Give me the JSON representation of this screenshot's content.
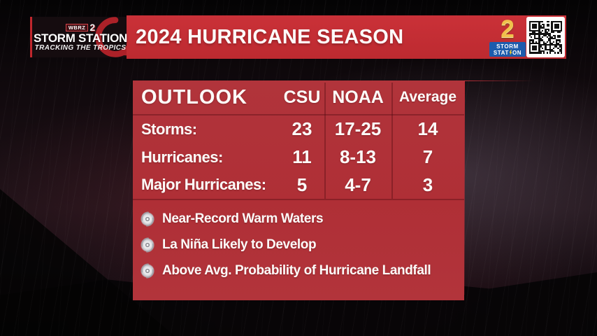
{
  "header": {
    "logo": {
      "badge": "WBRZ",
      "badge_num": "2",
      "title": "STORM STATION",
      "tagline": "TRACKING THE TROPICS"
    },
    "banner_title": "2024 HURRICANE SEASON",
    "storm2": {
      "number": "2",
      "line1": "STORM",
      "line2_pre": "STAT",
      "line2_post": "ON"
    }
  },
  "panel": {
    "table": {
      "header": {
        "outlook": "OUTLOOK",
        "csu": "CSU",
        "noaa": "NOAA",
        "average": "Average"
      },
      "rows": [
        {
          "label": "Storms:",
          "csu": "23",
          "noaa": "17-25",
          "average": "14"
        },
        {
          "label": "Hurricanes:",
          "csu": "11",
          "noaa": "8-13",
          "average": "7"
        },
        {
          "label": "Major Hurricanes:",
          "csu": "5",
          "noaa": "4-7",
          "average": "3"
        }
      ]
    },
    "bullets": [
      "Near-Record Warm Waters",
      "La Niña Likely to Develop",
      "Above Avg. Probability of Hurricane Landfall"
    ]
  },
  "icons": {
    "bullet": "hurricane-swirl-icon",
    "qr": "qr-code"
  },
  "colors": {
    "banner_red": "#c42f35",
    "panel_red": "#b1343b",
    "logo_blue": "#1d5cad",
    "gold": "#f0c14b",
    "text": "#ffffff"
  },
  "chart_data": {
    "type": "table",
    "title": "2024 HURRICANE SEASON",
    "columns": [
      "OUTLOOK",
      "CSU",
      "NOAA",
      "Average"
    ],
    "rows": [
      [
        "Storms:",
        "23",
        "17-25",
        "14"
      ],
      [
        "Hurricanes:",
        "11",
        "8-13",
        "7"
      ],
      [
        "Major Hurricanes:",
        "5",
        "4-7",
        "3"
      ]
    ],
    "notes": [
      "Near-Record Warm Waters",
      "La Niña Likely to Develop",
      "Above Avg. Probability of Hurricane Landfall"
    ]
  }
}
